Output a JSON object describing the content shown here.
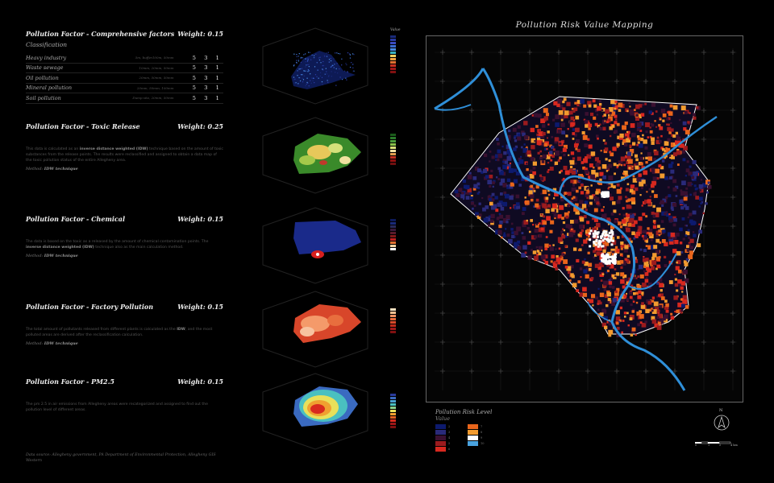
{
  "sections": [
    {
      "title": "Pollution Factor - Comprehensive factors",
      "weight": "Weight: 0.15",
      "subtitle": "Classification",
      "rows": [
        {
          "name": "Heavy industry",
          "dist": "5m, buffer100m, 50mm",
          "w": [
            "5",
            "3",
            "1"
          ]
        },
        {
          "name": "Waste sewage",
          "dist": "10mm, 20mm, 50mm",
          "w": [
            "5",
            "3",
            "1"
          ]
        },
        {
          "name": "Oil pollution",
          "dist": "20mm, 50mm, 50mm",
          "w": [
            "5",
            "3",
            "1"
          ]
        },
        {
          "name": "Mineral pollution",
          "dist": "20mm, 50mm, 100mm",
          "w": [
            "5",
            "3",
            "1"
          ]
        },
        {
          "name": "Soil pollution",
          "dist": "Dump site, 20mm, 50mm",
          "w": [
            "5",
            "3",
            "1"
          ]
        }
      ]
    },
    {
      "title": "Pollution Factor - Toxic Release",
      "weight": "Weight: 0.25",
      "body_pre": "This data is calculated as an ",
      "body_bold": "inverse distance weighted (IDW)",
      "body_post": " technique based on the amount of toxic substances from the release points. The results were reclassified and assigned to obtain a data map of the toxic pollution status of the entire Allegheny area.",
      "method_label": "Method: ",
      "method_value": "IDW technique"
    },
    {
      "title": "Pollution Factor - Chemical",
      "weight": "Weight: 0.15",
      "body_pre": "The data is based on the toxic as a released by the amount of chemical contamination points. The ",
      "body_bold": "inverse distance weighted (IDW)",
      "body_post": " technique also as the main calculation method.",
      "method_label": "Method: ",
      "method_value": "IDW technique"
    },
    {
      "title": "Pollution Factor - Factory Pollution",
      "weight": "Weight: 0.15",
      "body_pre": "The total amount of pollutants released from different plants is calculated as the ",
      "body_bold": "IDW",
      "body_post": ", and the most polluted areas are derived after the reclassification calculation.",
      "method_label": "Method: ",
      "method_value": "IDW technique"
    },
    {
      "title": "Pollution Factor - PM2.5",
      "weight": "Weight: 0.15",
      "body_pre": "The pm 2.5 in air emissions from Allegheny areas were recategorized and assigned to find out the pollution level of different areas.",
      "body_bold": "",
      "body_post": "",
      "method_label": "",
      "method_value": ""
    }
  ],
  "value_label": "Value",
  "source": "Data source: Allegheny government, PA Department of Environmental Protection, Allegheny GIS Western",
  "map_title": "Pollution Risk Value Mapping",
  "legend": {
    "title": "Pollution Risk Level",
    "subtitle": "Value",
    "items": [
      {
        "label": "2",
        "color": "#0d1a6e"
      },
      {
        "label": "7",
        "color": "#e9651b"
      },
      {
        "label": "3",
        "color": "#2a2a7a"
      },
      {
        "label": "8",
        "color": "#f29b2f"
      },
      {
        "label": "4",
        "color": "#3a1030"
      },
      {
        "label": "9",
        "color": "#ffffff"
      },
      {
        "label": "5",
        "color": "#9b1b1e"
      },
      {
        "label": "10",
        "color": "#4aa3df"
      },
      {
        "label": "6",
        "color": "#d8281f"
      }
    ]
  },
  "north_label": "N",
  "scale_labels": [
    "0",
    "1",
    "2",
    "4 km"
  ],
  "colors": {
    "background": "#000000",
    "river": "#2f8fd8"
  }
}
